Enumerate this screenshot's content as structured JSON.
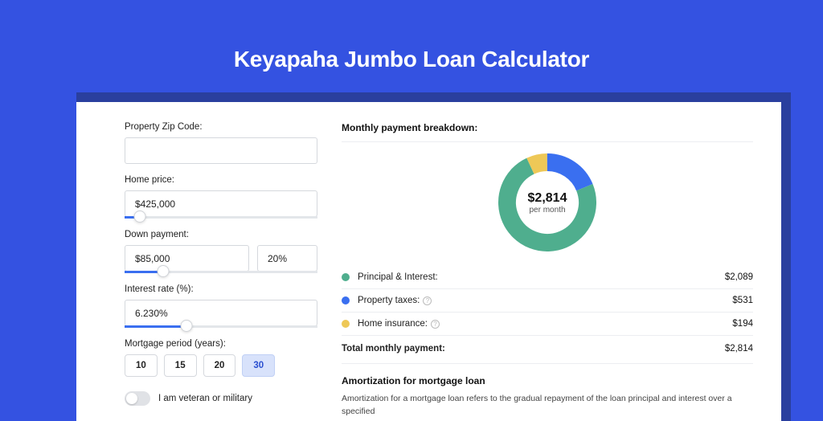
{
  "page": {
    "title": "Keyapaha Jumbo Loan Calculator",
    "background_color": "#3452e1",
    "card_accent_color": "#2a3f9e"
  },
  "form": {
    "zip": {
      "label": "Property Zip Code:",
      "value": ""
    },
    "home_price": {
      "label": "Home price:",
      "value": "$425,000",
      "slider_pct": 8
    },
    "down_payment": {
      "label": "Down payment:",
      "value": "$85,000",
      "pct_value": "20%",
      "slider_pct": 20
    },
    "interest_rate": {
      "label": "Interest rate (%):",
      "value": "6.230%",
      "slider_pct": 32
    },
    "period": {
      "label": "Mortgage period (years):",
      "options": [
        "10",
        "15",
        "20",
        "30"
      ],
      "selected": "30"
    },
    "veteran": {
      "label": "I am veteran or military",
      "value": false
    }
  },
  "breakdown": {
    "section_title": "Monthly payment breakdown:",
    "donut": {
      "center_amount": "$2,814",
      "center_sub": "per month",
      "segments": [
        {
          "key": "pi",
          "value": 2089,
          "color": "#4fae8e",
          "pct": 74.2
        },
        {
          "key": "tax",
          "value": 531,
          "color": "#3a6ff0",
          "pct": 18.9
        },
        {
          "key": "ins",
          "value": 194,
          "color": "#eec857",
          "pct": 6.9
        }
      ],
      "thickness": 22
    },
    "rows": [
      {
        "label": "Principal & Interest:",
        "value": "$2,089",
        "color": "#4fae8e",
        "info": false
      },
      {
        "label": "Property taxes:",
        "value": "$531",
        "color": "#3a6ff0",
        "info": true
      },
      {
        "label": "Home insurance:",
        "value": "$194",
        "color": "#eec857",
        "info": true
      }
    ],
    "total": {
      "label": "Total monthly payment:",
      "value": "$2,814"
    }
  },
  "amortization": {
    "title": "Amortization for mortgage loan",
    "text": "Amortization for a mortgage loan refers to the gradual repayment of the loan principal and interest over a specified"
  }
}
